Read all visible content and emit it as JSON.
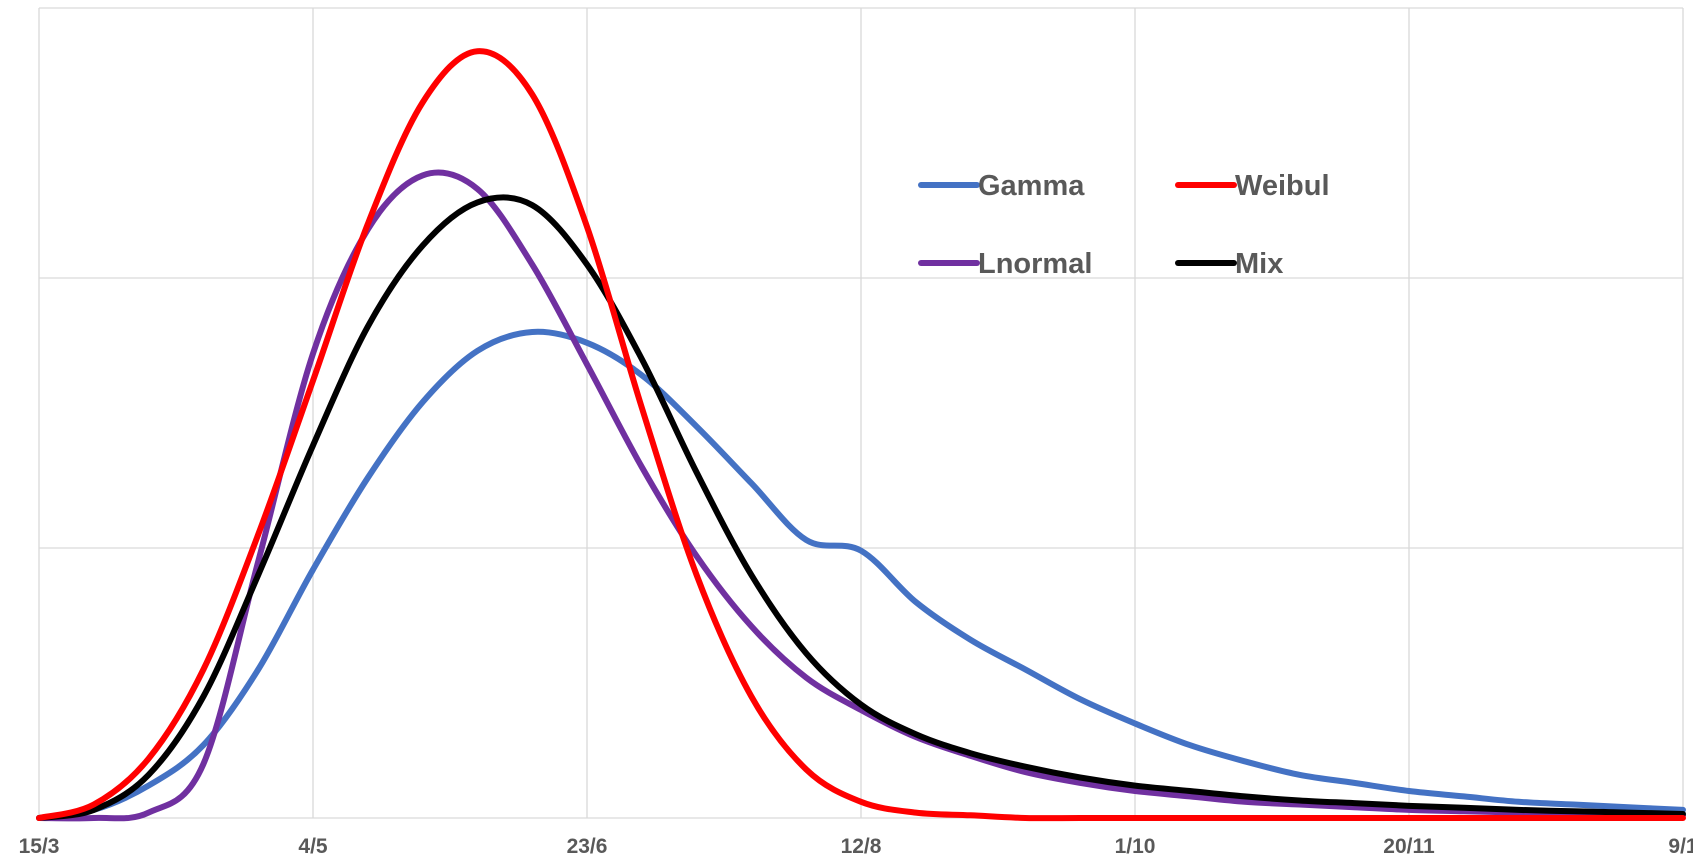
{
  "chart_data": {
    "type": "line",
    "title": "",
    "xlabel": "",
    "ylabel": "",
    "x_ticks": [
      "15/3",
      "4/5",
      "23/6",
      "12/8",
      "1/10",
      "20/11",
      "9/1"
    ],
    "x_tick_day_offsets": [
      0,
      50,
      100,
      150,
      200,
      250,
      300
    ],
    "xlim": [
      "15/3",
      "9/1"
    ],
    "ylim": [
      0,
      3
    ],
    "y_gridlines": [
      0,
      1,
      2,
      3
    ],
    "y_tick_labels_shown": false,
    "grid": true,
    "legend": {
      "placement": "top-right-inside",
      "columns": 2
    },
    "series": [
      {
        "name": "Gamma",
        "color": "#4472C4",
        "x": [
          "15/3",
          "25/3",
          "4/4",
          "14/4",
          "24/4",
          "4/5",
          "14/5",
          "24/5",
          "3/6",
          "13/6",
          "23/6",
          "3/7",
          "13/7",
          "23/7",
          "2/8",
          "12/8",
          "22/8",
          "1/9",
          "11/9",
          "21/9",
          "1/10",
          "11/10",
          "21/10",
          "31/10",
          "10/11",
          "20/11",
          "30/11",
          "10/12",
          "20/12",
          "30/12",
          "9/1"
        ],
        "y": [
          0.0,
          0.03,
          0.12,
          0.27,
          0.55,
          0.92,
          1.26,
          1.54,
          1.73,
          1.8,
          1.76,
          1.64,
          1.45,
          1.24,
          1.03,
          0.99,
          0.8,
          0.66,
          0.55,
          0.44,
          0.35,
          0.27,
          0.21,
          0.16,
          0.13,
          0.1,
          0.08,
          0.06,
          0.05,
          0.04,
          0.03
        ]
      },
      {
        "name": "Weibul",
        "color": "#FF0000",
        "x": [
          "15/3",
          "25/3",
          "4/4",
          "14/4",
          "24/4",
          "4/5",
          "14/5",
          "24/5",
          "3/6",
          "13/6",
          "23/6",
          "3/7",
          "13/7",
          "23/7",
          "2/8",
          "12/8",
          "22/8",
          "1/9",
          "11/9",
          "21/9",
          "1/10",
          "11/10",
          "21/10",
          "31/10",
          "10/11",
          "20/11",
          "30/11",
          "10/12",
          "20/12",
          "30/12",
          "9/1"
        ],
        "y": [
          0.0,
          0.05,
          0.22,
          0.55,
          1.05,
          1.62,
          2.2,
          2.65,
          2.84,
          2.68,
          2.19,
          1.52,
          0.9,
          0.45,
          0.18,
          0.06,
          0.02,
          0.01,
          0.0,
          0.0,
          0.0,
          0.0,
          0.0,
          0.0,
          0.0,
          0.0,
          0.0,
          0.0,
          0.0,
          0.0,
          0.0
        ]
      },
      {
        "name": "Lnormal",
        "color": "#7030A0",
        "x": [
          "15/3",
          "25/3",
          "4/4",
          "14/4",
          "24/4",
          "4/5",
          "14/5",
          "24/5",
          "3/6",
          "13/6",
          "23/6",
          "3/7",
          "13/7",
          "23/7",
          "2/8",
          "12/8",
          "22/8",
          "1/9",
          "11/9",
          "21/9",
          "1/10",
          "11/10",
          "21/10",
          "31/10",
          "10/11",
          "20/11",
          "30/11",
          "10/12",
          "20/12",
          "30/12",
          "9/1"
        ],
        "y": [
          0.0,
          0.0,
          0.02,
          0.2,
          0.95,
          1.72,
          2.18,
          2.38,
          2.33,
          2.05,
          1.68,
          1.3,
          0.97,
          0.71,
          0.52,
          0.4,
          0.3,
          0.23,
          0.17,
          0.13,
          0.1,
          0.08,
          0.06,
          0.05,
          0.04,
          0.03,
          0.025,
          0.02,
          0.015,
          0.012,
          0.01
        ]
      },
      {
        "name": "Mix",
        "color": "#000000",
        "x": [
          "15/3",
          "25/3",
          "4/4",
          "14/4",
          "24/4",
          "4/5",
          "14/5",
          "24/5",
          "3/6",
          "13/6",
          "23/6",
          "3/7",
          "13/7",
          "23/7",
          "2/8",
          "12/8",
          "22/8",
          "1/9",
          "11/9",
          "21/9",
          "1/10",
          "11/10",
          "21/10",
          "31/10",
          "10/11",
          "20/11",
          "30/11",
          "10/12",
          "20/12",
          "30/12",
          "9/1"
        ],
        "y": [
          0.0,
          0.03,
          0.16,
          0.45,
          0.9,
          1.38,
          1.82,
          2.12,
          2.28,
          2.27,
          2.05,
          1.7,
          1.28,
          0.9,
          0.61,
          0.42,
          0.31,
          0.24,
          0.19,
          0.15,
          0.12,
          0.1,
          0.08,
          0.065,
          0.055,
          0.045,
          0.038,
          0.03,
          0.025,
          0.02,
          0.015
        ]
      }
    ]
  }
}
